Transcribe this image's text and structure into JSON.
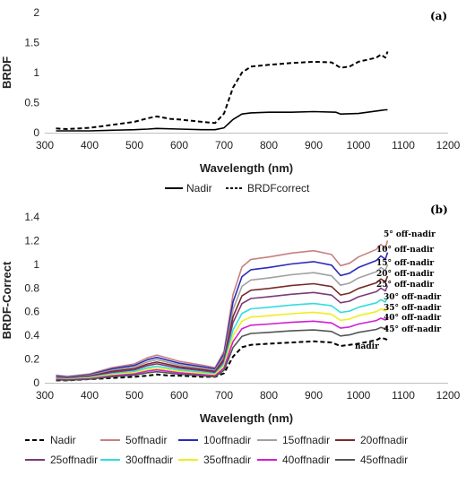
{
  "chart_data": [
    {
      "type": "line",
      "panel_label": "(a)",
      "xlabel": "Wavelength (nm)",
      "ylabel": "BRDF",
      "xlim": [
        300,
        1200
      ],
      "ylim": [
        0,
        2
      ],
      "xticks": [
        300,
        400,
        500,
        600,
        700,
        800,
        900,
        1000,
        1100,
        1200
      ],
      "yticks": [
        0,
        0.5,
        1,
        1.5,
        2
      ],
      "ytick_labels": [
        "0",
        "0.5",
        "1",
        "1.5",
        "2"
      ],
      "legend_position": "bottom",
      "series": [
        {
          "name": "Nadir",
          "color": "#000000",
          "dash": "solid",
          "x": [
            325,
            350,
            400,
            450,
            500,
            530,
            550,
            600,
            650,
            680,
            700,
            720,
            740,
            760,
            800,
            850,
            900,
            950,
            960,
            1000,
            1050,
            1060,
            1065
          ],
          "y": [
            0.03,
            0.03,
            0.03,
            0.04,
            0.05,
            0.06,
            0.07,
            0.06,
            0.05,
            0.05,
            0.08,
            0.22,
            0.31,
            0.33,
            0.34,
            0.34,
            0.35,
            0.34,
            0.31,
            0.32,
            0.37,
            0.38,
            0.38
          ]
        },
        {
          "name": "BRDFcorrect",
          "color": "#000000",
          "dash": "dashed",
          "x": [
            325,
            350,
            400,
            450,
            500,
            530,
            550,
            580,
            600,
            650,
            680,
            700,
            720,
            740,
            760,
            800,
            850,
            900,
            940,
            960,
            980,
            1000,
            1040,
            1050,
            1060,
            1065
          ],
          "y": [
            0.07,
            0.06,
            0.08,
            0.13,
            0.18,
            0.24,
            0.27,
            0.23,
            0.22,
            0.18,
            0.16,
            0.32,
            0.75,
            1.0,
            1.1,
            1.13,
            1.16,
            1.18,
            1.17,
            1.08,
            1.1,
            1.18,
            1.25,
            1.3,
            1.25,
            1.35
          ]
        }
      ]
    },
    {
      "type": "line",
      "panel_label": "(b)",
      "xlabel": "Wavelength (nm)",
      "ylabel": "BRDF-Correct",
      "xlim": [
        300,
        1200
      ],
      "ylim": [
        0,
        1.4
      ],
      "xticks": [
        300,
        400,
        500,
        600,
        700,
        800,
        900,
        1000,
        1100,
        1200
      ],
      "yticks": [
        0,
        0.2,
        0.4,
        0.6,
        0.8,
        1,
        1.2,
        1.4
      ],
      "ytick_labels": [
        "0",
        "0.2",
        "0.4",
        "0.6",
        "0.8",
        "1",
        "1.2",
        "1.4"
      ],
      "legend_position": "bottom",
      "x": [
        325,
        350,
        400,
        450,
        500,
        530,
        550,
        580,
        600,
        650,
        680,
        700,
        720,
        740,
        760,
        800,
        850,
        900,
        940,
        960,
        980,
        1000,
        1040,
        1050,
        1060,
        1065
      ],
      "base_shape": [
        0.06,
        0.05,
        0.07,
        0.12,
        0.15,
        0.2,
        0.22,
        0.19,
        0.17,
        0.14,
        0.12,
        0.25,
        0.7,
        0.92,
        0.98,
        1.0,
        1.03,
        1.05,
        1.02,
        0.93,
        0.95,
        1.0,
        1.06,
        1.1,
        1.07,
        1.13
      ],
      "series": [
        {
          "name": "Nadir",
          "color": "#000000",
          "dash": "dashed",
          "end_value": 0.36,
          "y": [
            0.02,
            0.02,
            0.03,
            0.04,
            0.05,
            0.06,
            0.07,
            0.06,
            0.06,
            0.05,
            0.05,
            0.08,
            0.22,
            0.3,
            0.32,
            0.33,
            0.34,
            0.35,
            0.34,
            0.31,
            0.32,
            0.33,
            0.36,
            0.38,
            0.37,
            0.36
          ]
        },
        {
          "name": "5offnadir",
          "color": "#c88080",
          "dash": "solid",
          "end_value": 1.2
        },
        {
          "name": "10offnadir",
          "color": "#2b2bb8",
          "dash": "solid",
          "end_value": 1.1
        },
        {
          "name": "15offnadir",
          "color": "#a0a0a0",
          "dash": "solid",
          "end_value": 1.0
        },
        {
          "name": "20offnadir",
          "color": "#7a2a2a",
          "dash": "solid",
          "end_value": 0.9
        },
        {
          "name": "25offnadir",
          "color": "#7a3a7a",
          "dash": "solid",
          "end_value": 0.82
        },
        {
          "name": "30offnadir",
          "color": "#33dddd",
          "dash": "solid",
          "end_value": 0.72
        },
        {
          "name": "35offnadir",
          "color": "#eeee22",
          "dash": "solid",
          "end_value": 0.64
        },
        {
          "name": "40offnadir",
          "color": "#d21ed2",
          "dash": "solid",
          "end_value": 0.56
        },
        {
          "name": "45offnadir",
          "color": "#555555",
          "dash": "solid",
          "end_value": 0.48
        }
      ],
      "annotations": [
        "5° off-nadir",
        "10° off-nadir",
        "15° off-nadir",
        "20° off-nadir",
        "25° off-nadir",
        "30° off-nadir",
        "35° off-nadir",
        "40° off-nadir",
        "45° off-nadir",
        "nadir"
      ]
    }
  ]
}
